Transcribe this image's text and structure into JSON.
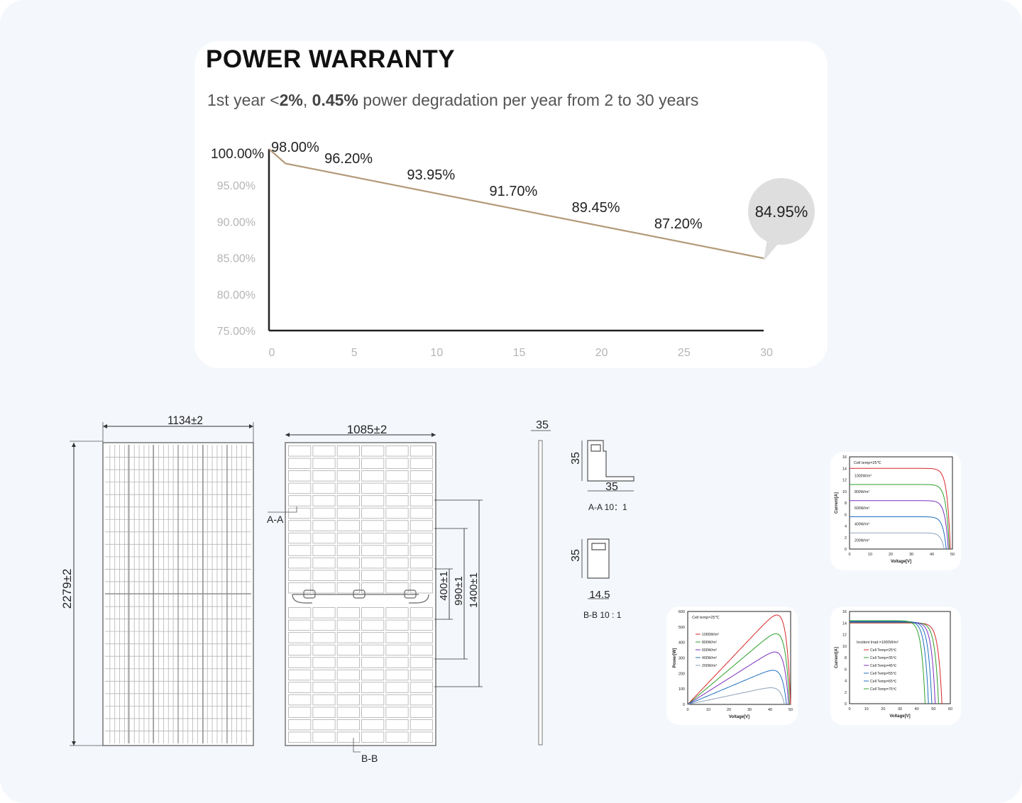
{
  "warranty": {
    "title": "POWER WARRANTY",
    "subtitle": {
      "p1": "1st year <",
      "b1": "2%",
      "p2": ", ",
      "b2": "0.45%",
      "p3": " power degradation per year from 2 to 30 years"
    }
  },
  "chart_data": {
    "type": "line",
    "x": [
      0,
      1,
      30
    ],
    "values": [
      100.0,
      98.0,
      84.95
    ],
    "point_labels": [
      {
        "x": 1,
        "text": "98.00%"
      },
      {
        "x": 5,
        "text": "96.20%"
      },
      {
        "x": 10,
        "text": "93.95%"
      },
      {
        "x": 15,
        "text": "91.70%"
      },
      {
        "x": 20,
        "text": "89.45%"
      },
      {
        "x": 25,
        "text": "87.20%"
      }
    ],
    "y_start_label": "100.00%",
    "end_label": "84.95%",
    "y_ticks": [
      "95.00%",
      "90.00%",
      "85.00%",
      "80.00%",
      "75.00%"
    ],
    "x_ticks": [
      "0",
      "5",
      "10",
      "15",
      "20",
      "25",
      "30"
    ],
    "xlim": [
      0,
      30
    ],
    "ylim": [
      75,
      100
    ],
    "line_color": "#b39a7a",
    "axis_color": "#222222",
    "bubble_color": "#dedede"
  },
  "drawing": {
    "front_width": "1134±2",
    "height": "2279±2",
    "back_width": "1085±2",
    "dim_400": "400±1",
    "dim_990": "990±1",
    "dim_1400": "1400±1",
    "label_aa": "A-A",
    "label_bb": "B-B",
    "side_thickness": "35",
    "aa_height": "35",
    "aa_width": "35",
    "aa_caption": "A-A 10：1",
    "bb_height": "35",
    "bb_width": "14.5",
    "bb_caption": "B-B 10 : 1"
  },
  "iv_chart": {
    "note": "Cell temp=25℃",
    "ylabel": "Current[A]",
    "xlabel": "Voltage[V]",
    "y_ticks": [
      "16",
      "14",
      "12",
      "10",
      "8",
      "6",
      "4",
      "2",
      "0"
    ],
    "x_ticks": [
      "0",
      "10",
      "20",
      "30",
      "40",
      "50"
    ],
    "curves": [
      "1000W/m²",
      "800W/m²",
      "600W/m²",
      "400W/m²",
      "200W/m²"
    ]
  },
  "pv_chart": {
    "note": "Cell temp=25℃",
    "ylabel": "Power[W]",
    "xlabel": "Voltage[V]",
    "y_ticks": [
      "600",
      "500",
      "400",
      "300",
      "200",
      "100",
      "0"
    ],
    "x_ticks": [
      "0",
      "10",
      "20",
      "30",
      "40",
      "50"
    ],
    "curves": [
      "1000W/m²",
      "800W/m²",
      "600W/m²",
      "400W/m²",
      "200W/m²"
    ]
  },
  "temp_chart": {
    "note": "Incident Irrad.=1000W/m²",
    "ylabel": "Current[A]",
    "xlabel": "Voltage[V]",
    "y_ticks": [
      "16",
      "14",
      "12",
      "10",
      "8",
      "6",
      "4",
      "2",
      "0"
    ],
    "x_ticks": [
      "0",
      "10",
      "20",
      "30",
      "40",
      "50",
      "60"
    ],
    "curves": [
      "Cell Temp=25℃",
      "Cell Temp=35℃",
      "Cell Temp=45℃",
      "Cell Temp=55℃",
      "Cell Temp=65℃",
      "Cell Temp=75℃"
    ]
  },
  "colors": {
    "curve_red": "#d62728",
    "curve_green": "#2ca02c",
    "curve_purple": "#7b2fbf",
    "curve_blue": "#1f6fbf",
    "curve_gray": "#8fa3b8"
  }
}
